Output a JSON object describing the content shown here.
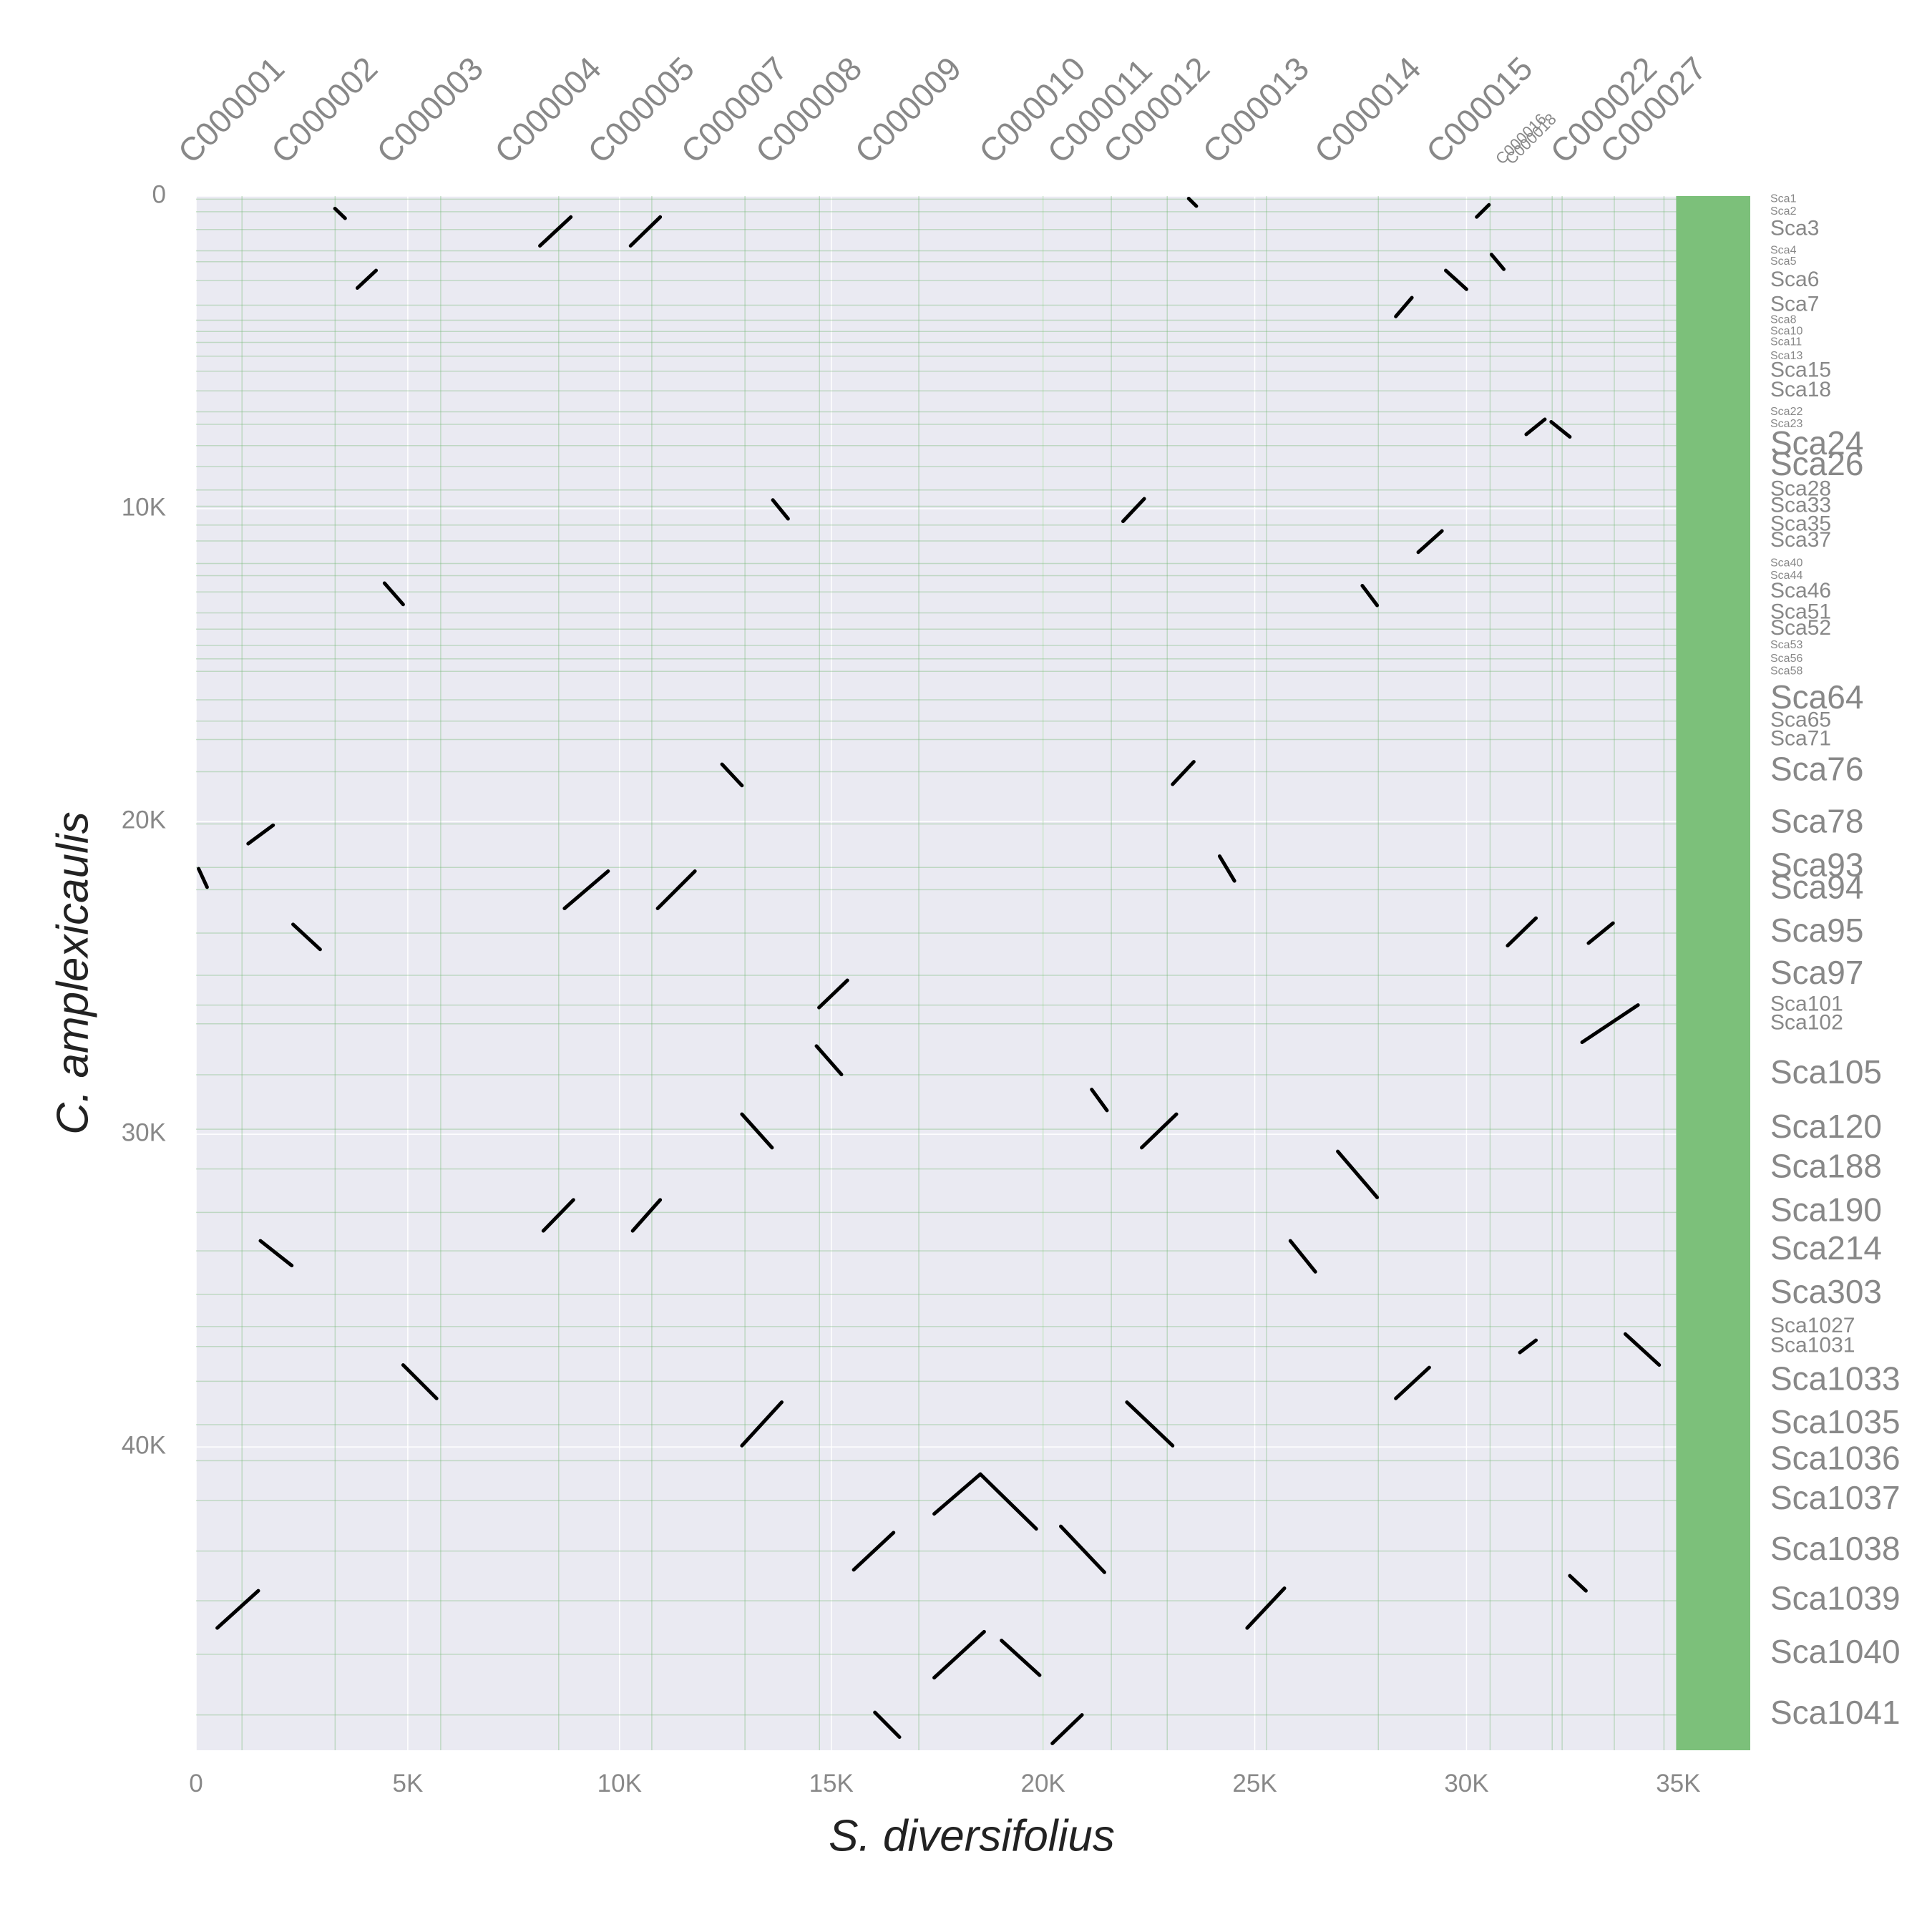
{
  "chart_data": {
    "type": "dotplot",
    "x_label": "S. diversifolius",
    "y_label": "C. amplexicaulis",
    "xlim": [
      0,
      36700
    ],
    "ylim": [
      49700,
      0
    ],
    "xticks": [
      0,
      {
        "value": 5000,
        "label": "5K"
      },
      {
        "value": 10000,
        "label": "10K"
      },
      {
        "value": 15000,
        "label": "15K"
      },
      {
        "value": 20000,
        "label": "20K"
      },
      {
        "value": 25000,
        "label": "25K"
      },
      {
        "value": 30000,
        "label": "30K"
      },
      {
        "value": 35000,
        "label": "35K"
      }
    ],
    "yticks": [
      0,
      {
        "value": 10000,
        "label": "10K"
      },
      {
        "value": 20000,
        "label": "20K"
      },
      {
        "value": 30000,
        "label": "30K"
      },
      {
        "value": 40000,
        "label": "40K"
      }
    ],
    "x_contigs": [
      {
        "label": "C000001",
        "position": 1085
      },
      {
        "label": "C000002",
        "position": 3284
      },
      {
        "label": "C000003",
        "position": 5777
      },
      {
        "label": "C000004",
        "position": 8563
      },
      {
        "label": "C000005",
        "position": 10762
      },
      {
        "label": "C000007",
        "position": 12962
      },
      {
        "label": "C000008",
        "position": 14721
      },
      {
        "label": "C000009",
        "position": 17067
      },
      {
        "label": "C000010",
        "position": 20000
      },
      {
        "label": "C000011",
        "position": 21613
      },
      {
        "label": "C000012",
        "position": 22933
      },
      {
        "label": "C000013",
        "position": 25279
      },
      {
        "label": "C000014",
        "position": 27918
      },
      {
        "label": "C000015",
        "position": 30557
      },
      {
        "label": "C000016",
        "position": 32023
      },
      {
        "label": "C000018",
        "position": 32258
      },
      {
        "label": "C000022",
        "position": 33490
      },
      {
        "label": "C000027",
        "position": 34663
      }
    ],
    "y_contigs": [
      {
        "label": "Sca1",
        "position": 100
      },
      {
        "label": "Sca2",
        "position": 500
      },
      {
        "label": "Sca3",
        "position": 1070
      },
      {
        "label": "Sca4",
        "position": 1750
      },
      {
        "label": "Sca5",
        "position": 2100
      },
      {
        "label": "Sca6",
        "position": 2700
      },
      {
        "label": "Sca7",
        "position": 3490
      },
      {
        "label": "Sca8",
        "position": 3970
      },
      {
        "label": "Sca10",
        "position": 4330
      },
      {
        "label": "Sca11",
        "position": 4680
      },
      {
        "label": "Sca13",
        "position": 5120
      },
      {
        "label": "Sca15",
        "position": 5600
      },
      {
        "label": "Sca18",
        "position": 6230
      },
      {
        "label": "Sca22",
        "position": 6900
      },
      {
        "label": "Sca23",
        "position": 7300
      },
      {
        "label": "Sca24",
        "position": 7980
      },
      {
        "label": "Sca26",
        "position": 8650
      },
      {
        "label": "Sca28",
        "position": 9400
      },
      {
        "label": "Sca33",
        "position": 9920
      },
      {
        "label": "Sca35",
        "position": 10520
      },
      {
        "label": "Sca37",
        "position": 11030
      },
      {
        "label": "Sca40",
        "position": 11750
      },
      {
        "label": "Sca44",
        "position": 12140
      },
      {
        "label": "Sca46",
        "position": 12660
      },
      {
        "label": "Sca51",
        "position": 13330
      },
      {
        "label": "Sca52",
        "position": 13850
      },
      {
        "label": "Sca53",
        "position": 14370
      },
      {
        "label": "Sca56",
        "position": 14800
      },
      {
        "label": "Sca58",
        "position": 15200
      },
      {
        "label": "Sca64",
        "position": 16110
      },
      {
        "label": "Sca65",
        "position": 16790
      },
      {
        "label": "Sca71",
        "position": 17380
      },
      {
        "label": "Sca76",
        "position": 18410
      },
      {
        "label": "Sca78",
        "position": 20080
      },
      {
        "label": "Sca93",
        "position": 21470
      },
      {
        "label": "Sca94",
        "position": 22180
      },
      {
        "label": "Sca95",
        "position": 23570
      },
      {
        "label": "Sca97",
        "position": 24920
      },
      {
        "label": "Sca101",
        "position": 25870
      },
      {
        "label": "Sca102",
        "position": 26470
      },
      {
        "label": "Sca105",
        "position": 28100
      },
      {
        "label": "Sca120",
        "position": 29840
      },
      {
        "label": "Sca188",
        "position": 31110
      },
      {
        "label": "Sca190",
        "position": 32500
      },
      {
        "label": "Sca214",
        "position": 33730
      },
      {
        "label": "Sca303",
        "position": 35120
      },
      {
        "label": "Sca1027",
        "position": 36150
      },
      {
        "label": "Sca1031",
        "position": 36790
      },
      {
        "label": "Sca1033",
        "position": 37900
      },
      {
        "label": "Sca1035",
        "position": 39290
      },
      {
        "label": "Sca1036",
        "position": 40440
      },
      {
        "label": "Sca1037",
        "position": 41710
      },
      {
        "label": "Sca1038",
        "position": 43330
      },
      {
        "label": "Sca1039",
        "position": 44920
      },
      {
        "label": "Sca1040",
        "position": 46630
      },
      {
        "label": "Sca1041",
        "position": 48570
      }
    ],
    "unplaced_xrange": [
      34950,
      36700
    ],
    "color": "#000000",
    "segments": [
      {
        "x": [
          8120,
          8850
        ],
        "y": [
          1590,
          670
        ]
      },
      {
        "x": [
          10260,
          10960
        ],
        "y": [
          1590,
          670
        ]
      },
      {
        "x": [
          30240,
          30530
        ],
        "y": [
          670,
          280
        ]
      },
      {
        "x": [
          3280,
          3520
        ],
        "y": [
          400,
          710
        ]
      },
      {
        "x": [
          23440,
          23620
        ],
        "y": [
          80,
          320
        ]
      },
      {
        "x": [
          3810,
          4250
        ],
        "y": [
          2940,
          2380
        ]
      },
      {
        "x": [
          29510,
          30000
        ],
        "y": [
          2380,
          2980
        ]
      },
      {
        "x": [
          30590,
          30880
        ],
        "y": [
          1870,
          2340
        ]
      },
      {
        "x": [
          28330,
          28710
        ],
        "y": [
          3850,
          3250
        ]
      },
      {
        "x": [
          31410,
          31850
        ],
        "y": [
          7620,
          7140
        ]
      },
      {
        "x": [
          32000,
          32440
        ],
        "y": [
          7220,
          7700
        ]
      },
      {
        "x": [
          13620,
          13980
        ],
        "y": [
          9720,
          10320
        ]
      },
      {
        "x": [
          21890,
          22390
        ],
        "y": [
          10400,
          9680
        ]
      },
      {
        "x": [
          28860,
          29420
        ],
        "y": [
          11390,
          10710
        ]
      },
      {
        "x": [
          4450,
          4890
        ],
        "y": [
          12380,
          13060
        ]
      },
      {
        "x": [
          27540,
          27890
        ],
        "y": [
          12460,
          13090
        ]
      },
      {
        "x": [
          12420,
          12890
        ],
        "y": [
          18170,
          18850
        ]
      },
      {
        "x": [
          23060,
          23560
        ],
        "y": [
          18810,
          18090
        ]
      },
      {
        "x": [
          8700,
          9730
        ],
        "y": [
          22780,
          21590
        ]
      },
      {
        "x": [
          10900,
          11780
        ],
        "y": [
          22780,
          21590
        ]
      },
      {
        "x": [
          30970,
          31640
        ],
        "y": [
          23970,
          23090
        ]
      },
      {
        "x": [
          32880,
          33460
        ],
        "y": [
          23890,
          23250
        ]
      },
      {
        "x": [
          2290,
          2930
        ],
        "y": [
          23290,
          24090
        ]
      },
      {
        "x": [
          14710,
          15380
        ],
        "y": [
          25950,
          25080
        ]
      },
      {
        "x": [
          14650,
          15240
        ],
        "y": [
          27180,
          28090
        ]
      },
      {
        "x": [
          32730,
          34050
        ],
        "y": [
          27060,
          25870
        ]
      },
      {
        "x": [
          12890,
          13600
        ],
        "y": [
          29360,
          30430
        ]
      },
      {
        "x": [
          22330,
          23150
        ],
        "y": [
          30430,
          29360
        ]
      },
      {
        "x": [
          8200,
          8910
        ],
        "y": [
          33090,
          32100
        ]
      },
      {
        "x": [
          10310,
          10960
        ],
        "y": [
          33090,
          32100
        ]
      },
      {
        "x": [
          25840,
          26430
        ],
        "y": [
          33410,
          34400
        ]
      },
      {
        "x": [
          26960,
          27890
        ],
        "y": [
          30550,
          32020
        ]
      },
      {
        "x": [
          1520,
          2260
        ],
        "y": [
          33410,
          34200
        ]
      },
      {
        "x": [
          4890,
          5680
        ],
        "y": [
          37380,
          38450
        ]
      },
      {
        "x": [
          28330,
          29120
        ],
        "y": [
          38450,
          37460
        ]
      },
      {
        "x": [
          33750,
          34550
        ],
        "y": [
          36390,
          37380
        ]
      },
      {
        "x": [
          31260,
          31640
        ],
        "y": [
          36980,
          36590
        ]
      },
      {
        "x": [
          12890,
          13830
        ],
        "y": [
          39960,
          38570
        ]
      },
      {
        "x": [
          21980,
          23060
        ],
        "y": [
          38570,
          39960
        ]
      },
      {
        "x": [
          15530,
          16470
        ],
        "y": [
          43930,
          42740
        ]
      },
      {
        "x": [
          17430,
          18520
        ],
        "y": [
          42140,
          40870
        ]
      },
      {
        "x": [
          18520,
          19840
        ],
        "y": [
          40870,
          42620
        ]
      },
      {
        "x": [
          20420,
          21450
        ],
        "y": [
          42540,
          44010
        ]
      },
      {
        "x": [
          500,
          1470
        ],
        "y": [
          45790,
          44600
        ]
      },
      {
        "x": [
          24820,
          25700
        ],
        "y": [
          45790,
          44520
        ]
      },
      {
        "x": [
          17430,
          18610
        ],
        "y": [
          47380,
          45910
        ]
      },
      {
        "x": [
          19020,
          19920
        ],
        "y": [
          46190,
          47300
        ]
      },
      {
        "x": [
          16030,
          16610
        ],
        "y": [
          48490,
          49280
        ]
      },
      {
        "x": [
          20220,
          20920
        ],
        "y": [
          49480,
          48570
        ]
      },
      {
        "x": [
          32440,
          32820
        ],
        "y": [
          44120,
          44600
        ]
      },
      {
        "x": [
          21150,
          21510
        ],
        "y": [
          28570,
          29240
        ]
      },
      {
        "x": [
          24170,
          24520
        ],
        "y": [
          21110,
          21900
        ]
      },
      {
        "x": [
          60,
          260
        ],
        "y": [
          21510,
          22100
        ]
      },
      {
        "x": [
          1230,
          1820
        ],
        "y": [
          20710,
          20120
        ]
      }
    ]
  }
}
